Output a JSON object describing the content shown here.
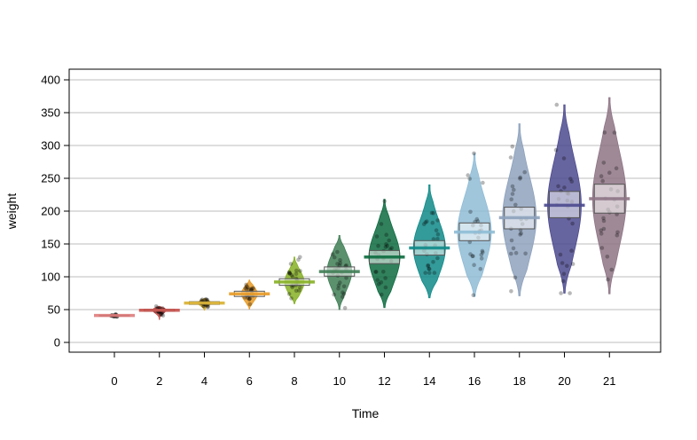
{
  "chart_data": {
    "type": "violin",
    "title": "",
    "xlabel": "Time",
    "ylabel": "weight",
    "ylim": [
      -15,
      415
    ],
    "yticks": [
      0,
      50,
      100,
      150,
      200,
      250,
      300,
      350,
      400
    ],
    "grid": "horizontal",
    "categories": [
      "0",
      "2",
      "4",
      "6",
      "8",
      "10",
      "12",
      "14",
      "16",
      "18",
      "20",
      "21"
    ],
    "series": [
      {
        "category": "0",
        "color": "#e07b7b",
        "mean": 41,
        "min": 39,
        "max": 43,
        "ci": [
          40.5,
          41.5
        ]
      },
      {
        "category": "2",
        "color": "#c8504a",
        "mean": 49,
        "min": 35,
        "max": 55,
        "ci": [
          47.5,
          50.5
        ]
      },
      {
        "category": "4",
        "color": "#d9b030",
        "mean": 60,
        "min": 49,
        "max": 67,
        "ci": [
          58,
          62
        ]
      },
      {
        "category": "6",
        "color": "#e89a25",
        "mean": 74,
        "min": 51,
        "max": 95,
        "ci": [
          70,
          78
        ]
      },
      {
        "category": "8",
        "color": "#86b025",
        "mean": 92,
        "min": 59,
        "max": 130,
        "ci": [
          87,
          97
        ]
      },
      {
        "category": "10",
        "color": "#3f7e55",
        "mean": 108,
        "min": 50,
        "max": 163,
        "ci": [
          101,
          115
        ]
      },
      {
        "category": "12",
        "color": "#0d6b3f",
        "mean": 130,
        "min": 53,
        "max": 218,
        "ci": [
          120,
          140
        ]
      },
      {
        "category": "14",
        "color": "#0f8a88",
        "mean": 144,
        "min": 68,
        "max": 240,
        "ci": [
          133,
          155
        ]
      },
      {
        "category": "16",
        "color": "#8fbcd6",
        "mean": 168,
        "min": 70,
        "max": 288,
        "ci": [
          155,
          182
        ]
      },
      {
        "category": "18",
        "color": "#8ea2bd",
        "mean": 190,
        "min": 71,
        "max": 333,
        "ci": [
          173,
          206
        ]
      },
      {
        "category": "20",
        "color": "#4c4a8e",
        "mean": 209,
        "min": 75,
        "max": 362,
        "ci": [
          190,
          230
        ]
      },
      {
        "category": "21",
        "color": "#8e7485",
        "mean": 219,
        "min": 74,
        "max": 373,
        "ci": [
          197,
          241
        ]
      }
    ]
  }
}
